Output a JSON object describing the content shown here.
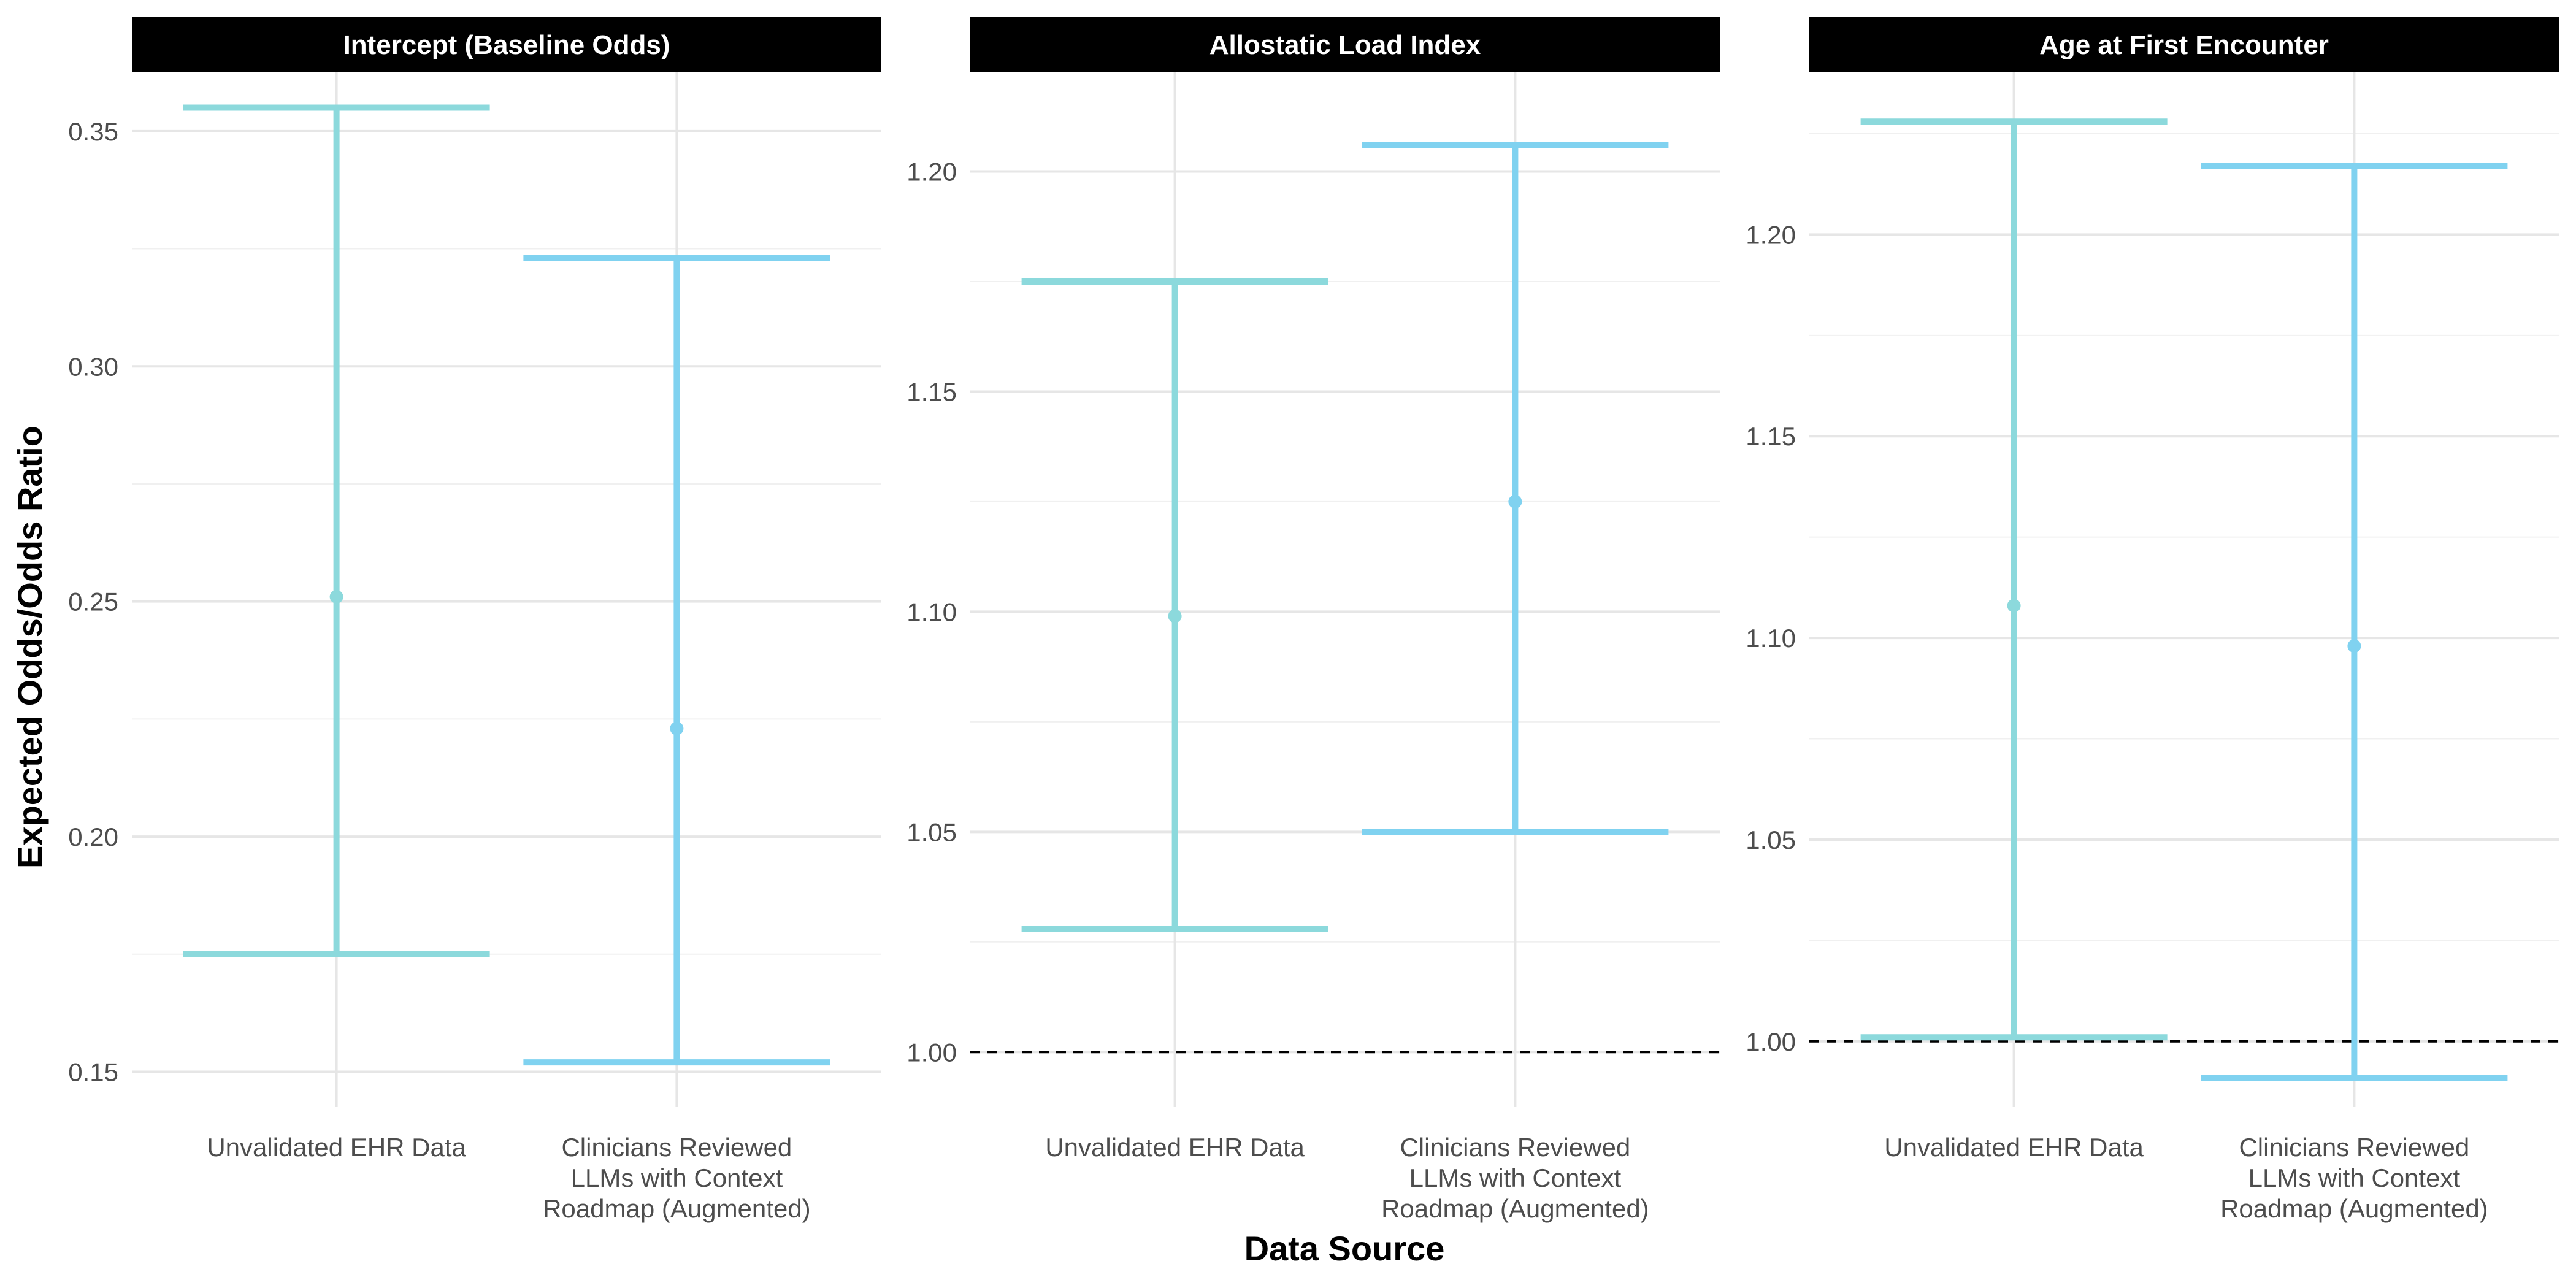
{
  "chart_data": {
    "type": "errorbar",
    "xlabel": "Data Source",
    "ylabel": "Expected Odds/Odds Ratio",
    "grid": true,
    "legend": "none",
    "categories": [
      [
        "Unvalidated EHR Data"
      ],
      [
        "Clinicians Reviewed",
        "LLMs with Context",
        "Roadmap (Augmented)"
      ]
    ],
    "colors": [
      "#8cd9dc",
      "#80d2f0"
    ],
    "reference_line_color": "#000000",
    "panels": [
      {
        "title": "Intercept (Baseline Odds)",
        "ylim": [
          0.1425,
          0.3625
        ],
        "yticks": [
          0.15,
          0.2,
          0.25,
          0.3,
          0.35
        ],
        "ytick_labels": [
          "0.15",
          "0.20",
          "0.25",
          "0.30",
          "0.35"
        ],
        "reference_line": null,
        "points": [
          {
            "estimate": 0.251,
            "lower": 0.175,
            "upper": 0.355
          },
          {
            "estimate": 0.223,
            "lower": 0.152,
            "upper": 0.323
          }
        ]
      },
      {
        "title": "Allostatic Load Index",
        "ylim": [
          0.9875,
          1.2225
        ],
        "yticks": [
          1.0,
          1.05,
          1.1,
          1.15,
          1.2
        ],
        "ytick_labels": [
          "1.00",
          "1.05",
          "1.10",
          "1.15",
          "1.20"
        ],
        "reference_line": 1.0,
        "points": [
          {
            "estimate": 1.099,
            "lower": 1.028,
            "upper": 1.175
          },
          {
            "estimate": 1.125,
            "lower": 1.05,
            "upper": 1.206
          }
        ]
      },
      {
        "title": "Age at First Encounter",
        "ylim": [
          0.9837,
          1.2402
        ],
        "yticks": [
          1.0,
          1.05,
          1.1,
          1.15,
          1.2
        ],
        "ytick_labels": [
          "1.00",
          "1.05",
          "1.10",
          "1.15",
          "1.20"
        ],
        "reference_line": 1.0,
        "points": [
          {
            "estimate": 1.108,
            "lower": 1.001,
            "upper": 1.228
          },
          {
            "estimate": 1.098,
            "lower": 0.991,
            "upper": 1.217
          }
        ]
      }
    ]
  }
}
